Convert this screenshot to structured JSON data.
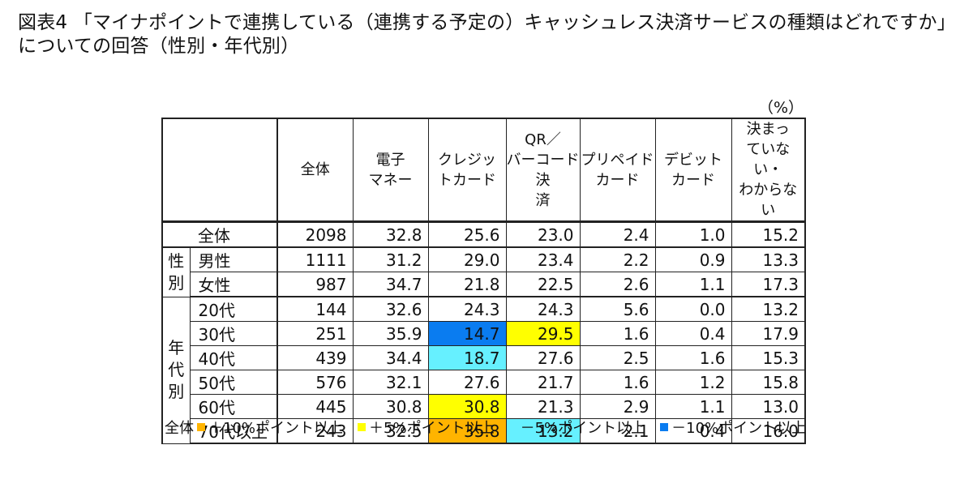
{
  "title": "図表4 「マイナポイントで連携している（連携する予定の）キャッシュレス決済サービスの種類はどれですか」についての回答（性別・年代別）",
  "unit_note": "（%）",
  "chart_data": {
    "type": "table",
    "columns": [
      "全体",
      "電子マネー",
      "クレジットカード",
      "QR／バーコード決済",
      "プリペイドカード",
      "デビットカード",
      "決まっていない・わからない"
    ],
    "groups": [
      {
        "name": "",
        "rows": [
          {
            "label": "全体",
            "values": [
              "2098",
              "32.8",
              "25.6",
              "23.0",
              "2.4",
              "1.0",
              "15.2"
            ],
            "highlight": [
              null,
              null,
              null,
              null,
              null,
              null,
              null
            ]
          }
        ]
      },
      {
        "name": "性別",
        "rows": [
          {
            "label": "男性",
            "values": [
              "1111",
              "31.2",
              "29.0",
              "23.4",
              "2.2",
              "0.9",
              "13.3"
            ],
            "highlight": [
              null,
              null,
              null,
              null,
              null,
              null,
              null
            ]
          },
          {
            "label": "女性",
            "values": [
              "987",
              "34.7",
              "21.8",
              "22.5",
              "2.6",
              "1.1",
              "17.3"
            ],
            "highlight": [
              null,
              null,
              null,
              null,
              null,
              null,
              null
            ]
          }
        ]
      },
      {
        "name": "年代別",
        "rows": [
          {
            "label": "20代",
            "values": [
              "144",
              "32.6",
              "24.3",
              "24.3",
              "5.6",
              "0.0",
              "13.2"
            ],
            "highlight": [
              null,
              null,
              null,
              null,
              null,
              null,
              null
            ]
          },
          {
            "label": "30代",
            "values": [
              "251",
              "35.9",
              "14.7",
              "29.5",
              "1.6",
              "0.4",
              "17.9"
            ],
            "highlight": [
              null,
              null,
              "minus10",
              "plus5",
              null,
              null,
              null
            ]
          },
          {
            "label": "40代",
            "values": [
              "439",
              "34.4",
              "18.7",
              "27.6",
              "2.5",
              "1.6",
              "15.3"
            ],
            "highlight": [
              null,
              null,
              "minus5",
              null,
              null,
              null,
              null
            ]
          },
          {
            "label": "50代",
            "values": [
              "576",
              "32.1",
              "27.6",
              "21.7",
              "1.6",
              "1.2",
              "15.8"
            ],
            "highlight": [
              null,
              null,
              null,
              null,
              null,
              null,
              null
            ]
          },
          {
            "label": "60代",
            "values": [
              "445",
              "30.8",
              "30.8",
              "21.3",
              "2.9",
              "1.1",
              "13.0"
            ],
            "highlight": [
              null,
              null,
              "plus5",
              null,
              null,
              null,
              null
            ]
          },
          {
            "label": "70代以上",
            "values": [
              "243",
              "32.5",
              "35.8",
              "13.2",
              "2.1",
              "0.4",
              "16.0"
            ],
            "highlight": [
              null,
              null,
              "plus10",
              "minus5",
              null,
              null,
              null
            ]
          }
        ]
      }
    ],
    "legend": {
      "prefix": "全体",
      "items": [
        {
          "key": "plus10",
          "label": "＋10%ポイント以上",
          "color": "#ffb400"
        },
        {
          "key": "plus5",
          "label": "＋5%ポイント以上",
          "color": "#ffff00"
        },
        {
          "key": "minus5",
          "label": "－5%ポイント以上",
          "color": "#66f0ff"
        },
        {
          "key": "minus10",
          "label": "－10%ポイント以上",
          "color": "#0a7cf0"
        }
      ]
    }
  }
}
